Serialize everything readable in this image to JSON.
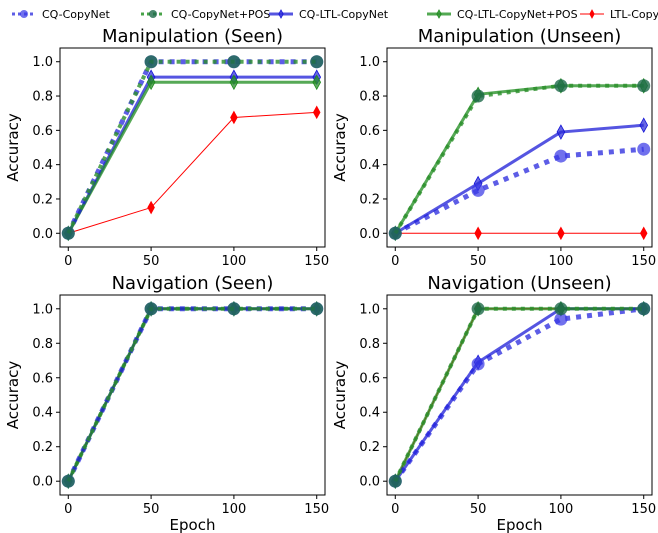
{
  "legend": {
    "entries": [
      {
        "label": "CQ-CopyNet",
        "color": "#1f1fdc",
        "style": "dotted",
        "marker": "circle"
      },
      {
        "label": "CQ-CopyNet+POS",
        "color": "#1a8c1a",
        "style": "dotted",
        "marker": "circle"
      },
      {
        "label": "CQ-LTL-CopyNet",
        "color": "#1414d6",
        "style": "solid",
        "marker": "thin-diamond"
      },
      {
        "label": "CQ-LTL-CopyNet+POS",
        "color": "#1a8c1a",
        "style": "solid",
        "marker": "thin-diamond"
      },
      {
        "label": "LTL-CopyNet",
        "color": "#ff0000",
        "style": "solid",
        "marker": "thin-diamond"
      }
    ]
  },
  "chart_data": [
    {
      "type": "line",
      "title": "Manipulation (Seen)",
      "xlabel": "",
      "ylabel": "Accuracy",
      "x": [
        0,
        50,
        100,
        150
      ],
      "xticks": [
        "0",
        "50",
        "100",
        "150"
      ],
      "yticks": [
        "0.0",
        "0.2",
        "0.4",
        "0.6",
        "0.8",
        "1.0"
      ],
      "xlim": [
        -5,
        155
      ],
      "ylim": [
        -0.08,
        1.08
      ],
      "series": [
        {
          "name": "CQ-CopyNet",
          "values": [
            0.0,
            1.0,
            1.0,
            1.0
          ]
        },
        {
          "name": "CQ-CopyNet+POS",
          "values": [
            0.0,
            1.0,
            1.0,
            1.0
          ]
        },
        {
          "name": "CQ-LTL-CopyNet",
          "values": [
            0.0,
            0.91,
            0.91,
            0.91
          ]
        },
        {
          "name": "CQ-LTL-CopyNet+POS",
          "values": [
            0.0,
            0.88,
            0.88,
            0.88
          ]
        },
        {
          "name": "LTL-CopyNet",
          "values": [
            0.0,
            0.15,
            0.675,
            0.705
          ]
        }
      ]
    },
    {
      "type": "line",
      "title": "Manipulation (Unseen)",
      "xlabel": "",
      "ylabel": "Accuracy",
      "x": [
        0,
        50,
        100,
        150
      ],
      "xticks": [
        "0",
        "50",
        "100",
        "150"
      ],
      "yticks": [
        "0.0",
        "0.2",
        "0.4",
        "0.6",
        "0.8",
        "1.0"
      ],
      "xlim": [
        -5,
        155
      ],
      "ylim": [
        -0.08,
        1.08
      ],
      "series": [
        {
          "name": "CQ-CopyNet",
          "values": [
            0.0,
            0.25,
            0.45,
            0.49
          ]
        },
        {
          "name": "CQ-CopyNet+POS",
          "values": [
            0.0,
            0.8,
            0.86,
            0.86
          ]
        },
        {
          "name": "CQ-LTL-CopyNet",
          "values": [
            0.0,
            0.29,
            0.59,
            0.63
          ]
        },
        {
          "name": "CQ-LTL-CopyNet+POS",
          "values": [
            0.0,
            0.81,
            0.86,
            0.86
          ]
        },
        {
          "name": "LTL-CopyNet",
          "values": [
            0.0,
            0.0,
            0.0,
            0.0
          ]
        }
      ]
    },
    {
      "type": "line",
      "title": "Navigation (Seen)",
      "xlabel": "Epoch",
      "ylabel": "Accuracy",
      "x": [
        0,
        50,
        100,
        150
      ],
      "xticks": [
        "0",
        "50",
        "100",
        "150"
      ],
      "yticks": [
        "0.0",
        "0.2",
        "0.4",
        "0.6",
        "0.8",
        "1.0"
      ],
      "xlim": [
        -5,
        155
      ],
      "ylim": [
        -0.08,
        1.08
      ],
      "series": [
        {
          "name": "CQ-CopyNet",
          "values": [
            0.0,
            1.0,
            1.0,
            1.0
          ]
        },
        {
          "name": "CQ-CopyNet+POS",
          "values": [
            0.0,
            1.0,
            1.0,
            1.0
          ]
        },
        {
          "name": "CQ-LTL-CopyNet",
          "values": [
            0.0,
            1.0,
            1.0,
            1.0
          ]
        },
        {
          "name": "CQ-LTL-CopyNet+POS",
          "values": [
            0.0,
            1.0,
            1.0,
            1.0
          ]
        },
        {
          "name": "LTL-CopyNet",
          "values": [
            0.0,
            1.0,
            1.0,
            1.0
          ]
        }
      ]
    },
    {
      "type": "line",
      "title": "Navigation (Unseen)",
      "xlabel": "Epoch",
      "ylabel": "Accuracy",
      "x": [
        0,
        50,
        100,
        150
      ],
      "xticks": [
        "0",
        "50",
        "100",
        "150"
      ],
      "yticks": [
        "0.0",
        "0.2",
        "0.4",
        "0.6",
        "0.8",
        "1.0"
      ],
      "xlim": [
        -5,
        155
      ],
      "ylim": [
        -0.08,
        1.08
      ],
      "series": [
        {
          "name": "CQ-CopyNet",
          "values": [
            0.0,
            0.68,
            0.94,
            1.0
          ]
        },
        {
          "name": "CQ-CopyNet+POS",
          "values": [
            0.0,
            1.0,
            1.0,
            1.0
          ]
        },
        {
          "name": "CQ-LTL-CopyNet",
          "values": [
            0.0,
            0.69,
            1.0,
            1.0
          ]
        },
        {
          "name": "CQ-LTL-CopyNet+POS",
          "values": [
            0.0,
            1.0,
            1.0,
            1.0
          ]
        },
        {
          "name": "LTL-CopyNet",
          "values": [
            0.0,
            1.0,
            1.0,
            1.0
          ]
        }
      ]
    }
  ]
}
